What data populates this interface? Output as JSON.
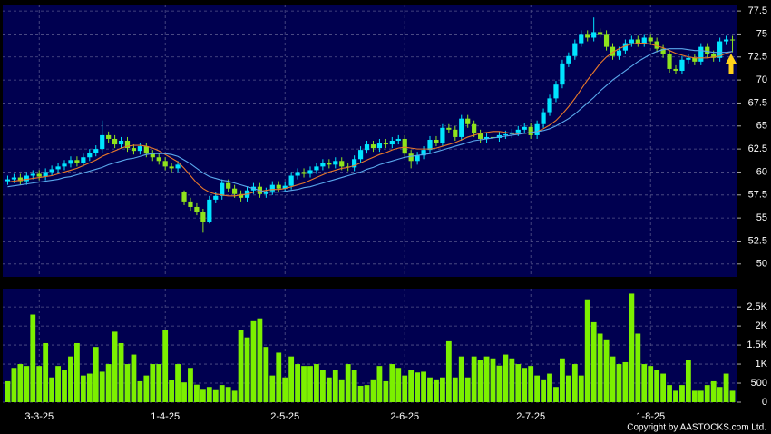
{
  "chart_data": [
    {
      "type": "candlestick",
      "up_color": "#00e5ff",
      "down_color": "#8fe31c",
      "grid": true,
      "ylim": [
        48.6,
        78.2
      ],
      "yticks": [
        50,
        52.5,
        55,
        57.5,
        60,
        62.5,
        65,
        67.5,
        70,
        72.5,
        75,
        77.5
      ],
      "ohlc": [
        [
          59.0,
          59.6,
          58.6,
          59.2
        ],
        [
          59.2,
          59.8,
          58.8,
          59.4
        ],
        [
          59.4,
          59.8,
          58.6,
          59.0
        ],
        [
          59.0,
          60.0,
          58.6,
          59.6
        ],
        [
          59.6,
          60.2,
          59.2,
          59.8
        ],
        [
          59.8,
          60.2,
          59.1,
          59.5
        ],
        [
          59.5,
          60.4,
          59.1,
          60.0
        ],
        [
          60.0,
          60.7,
          59.6,
          60.3
        ],
        [
          60.3,
          61.0,
          59.9,
          60.6
        ],
        [
          60.6,
          61.3,
          60.2,
          60.9
        ],
        [
          60.9,
          61.7,
          60.5,
          61.3
        ],
        [
          61.3,
          61.7,
          60.6,
          61.0
        ],
        [
          61.0,
          62.0,
          60.6,
          61.6
        ],
        [
          61.6,
          62.5,
          61.2,
          62.1
        ],
        [
          62.1,
          62.9,
          61.7,
          62.5
        ],
        [
          62.5,
          65.6,
          62.1,
          64.0
        ],
        [
          64.0,
          64.4,
          63.2,
          63.6
        ],
        [
          63.6,
          64.0,
          62.6,
          63.0
        ],
        [
          63.0,
          63.8,
          62.6,
          63.4
        ],
        [
          63.4,
          63.8,
          62.2,
          62.6
        ],
        [
          62.6,
          63.0,
          61.9,
          62.3
        ],
        [
          62.3,
          63.2,
          61.9,
          62.8
        ],
        [
          62.8,
          63.2,
          61.6,
          62.0
        ],
        [
          62.0,
          62.4,
          61.2,
          61.6
        ],
        [
          61.6,
          62.0,
          60.8,
          61.2
        ],
        [
          61.2,
          61.6,
          60.2,
          60.6
        ],
        [
          60.6,
          61.0,
          60.0,
          60.4
        ],
        [
          60.4,
          61.2,
          60.0,
          60.8
        ],
        [
          57.8,
          58.0,
          56.4,
          56.8
        ],
        [
          56.8,
          57.2,
          55.8,
          56.2
        ],
        [
          56.2,
          56.6,
          55.3,
          55.7
        ],
        [
          55.7,
          56.0,
          53.4,
          54.6
        ],
        [
          54.6,
          57.4,
          54.4,
          57.0
        ],
        [
          57.0,
          57.8,
          56.6,
          57.4
        ],
        [
          57.4,
          59.2,
          57.0,
          58.8
        ],
        [
          58.8,
          59.2,
          57.8,
          58.2
        ],
        [
          58.2,
          58.6,
          57.2,
          57.6
        ],
        [
          57.6,
          58.0,
          56.8,
          57.2
        ],
        [
          57.2,
          58.4,
          56.8,
          58.0
        ],
        [
          58.0,
          58.8,
          57.6,
          58.4
        ],
        [
          58.4,
          58.8,
          57.2,
          57.6
        ],
        [
          57.6,
          58.3,
          57.2,
          57.9
        ],
        [
          57.9,
          59.0,
          57.5,
          58.6
        ],
        [
          58.6,
          59.0,
          57.8,
          58.2
        ],
        [
          58.2,
          58.9,
          57.8,
          58.5
        ],
        [
          58.5,
          60.0,
          58.1,
          59.6
        ],
        [
          59.6,
          60.4,
          59.2,
          60.0
        ],
        [
          60.0,
          60.4,
          59.4,
          59.8
        ],
        [
          59.8,
          60.6,
          59.4,
          60.2
        ],
        [
          60.2,
          61.0,
          59.8,
          60.6
        ],
        [
          60.6,
          61.4,
          60.2,
          61.0
        ],
        [
          61.0,
          61.4,
          60.4,
          60.8
        ],
        [
          60.8,
          61.6,
          60.4,
          61.2
        ],
        [
          61.2,
          61.6,
          60.2,
          60.6
        ],
        [
          60.6,
          61.0,
          60.1,
          60.5
        ],
        [
          60.5,
          61.8,
          60.1,
          61.4
        ],
        [
          61.4,
          62.8,
          61.0,
          62.4
        ],
        [
          62.4,
          63.4,
          62.0,
          63.0
        ],
        [
          63.0,
          63.4,
          62.2,
          62.6
        ],
        [
          62.6,
          63.6,
          62.2,
          63.2
        ],
        [
          63.2,
          63.6,
          62.6,
          63.0
        ],
        [
          63.0,
          63.8,
          62.6,
          63.4
        ],
        [
          63.4,
          64.0,
          63.0,
          63.6
        ],
        [
          63.6,
          64.0,
          61.6,
          62.0
        ],
        [
          62.0,
          62.4,
          60.4,
          61.2
        ],
        [
          61.2,
          62.2,
          60.8,
          61.8
        ],
        [
          61.8,
          62.8,
          61.4,
          62.4
        ],
        [
          62.4,
          63.9,
          62.0,
          63.5
        ],
        [
          63.5,
          63.9,
          62.8,
          63.2
        ],
        [
          63.2,
          65.2,
          62.8,
          64.8
        ],
        [
          64.8,
          65.2,
          64.2,
          64.6
        ],
        [
          64.6,
          65.0,
          63.4,
          63.8
        ],
        [
          63.8,
          66.2,
          63.4,
          65.8
        ],
        [
          65.8,
          66.2,
          64.8,
          65.2
        ],
        [
          65.2,
          65.6,
          63.8,
          64.2
        ],
        [
          64.2,
          64.6,
          63.2,
          63.6
        ],
        [
          63.6,
          64.2,
          63.2,
          63.8
        ],
        [
          63.8,
          64.2,
          63.3,
          63.7
        ],
        [
          63.7,
          64.4,
          63.3,
          64.0
        ],
        [
          64.0,
          64.5,
          63.6,
          64.1
        ],
        [
          64.1,
          64.7,
          63.7,
          64.3
        ],
        [
          64.3,
          65.0,
          63.9,
          64.6
        ],
        [
          64.6,
          65.3,
          64.2,
          64.9
        ],
        [
          64.9,
          65.3,
          63.6,
          64.0
        ],
        [
          64.0,
          65.6,
          63.6,
          65.2
        ],
        [
          65.2,
          66.9,
          64.8,
          66.5
        ],
        [
          66.5,
          68.4,
          66.1,
          68.0
        ],
        [
          68.0,
          69.9,
          67.6,
          69.5
        ],
        [
          69.5,
          72.2,
          69.1,
          71.8
        ],
        [
          71.8,
          73.0,
          71.4,
          72.6
        ],
        [
          72.6,
          74.4,
          72.2,
          74.0
        ],
        [
          74.0,
          75.4,
          73.6,
          75.0
        ],
        [
          75.0,
          75.4,
          74.2,
          74.6
        ],
        [
          74.6,
          76.8,
          74.2,
          75.2
        ],
        [
          75.2,
          75.6,
          74.6,
          75.0
        ],
        [
          75.0,
          75.4,
          73.2,
          73.6
        ],
        [
          73.6,
          74.0,
          72.2,
          72.6
        ],
        [
          72.6,
          73.6,
          72.2,
          73.2
        ],
        [
          73.2,
          74.4,
          72.8,
          74.0
        ],
        [
          74.0,
          74.8,
          73.6,
          74.4
        ],
        [
          74.4,
          74.8,
          73.6,
          74.0
        ],
        [
          74.0,
          75.0,
          73.6,
          74.6
        ],
        [
          74.6,
          75.0,
          73.8,
          74.2
        ],
        [
          74.2,
          74.6,
          73.0,
          73.4
        ],
        [
          73.4,
          73.8,
          72.4,
          72.8
        ],
        [
          72.8,
          73.2,
          70.8,
          71.2
        ],
        [
          71.2,
          71.6,
          70.6,
          71.0
        ],
        [
          71.0,
          72.6,
          70.6,
          72.2
        ],
        [
          72.2,
          72.8,
          71.8,
          72.4
        ],
        [
          72.4,
          72.8,
          71.6,
          72.0
        ],
        [
          72.0,
          74.0,
          71.6,
          73.6
        ],
        [
          73.6,
          74.0,
          72.4,
          72.8
        ],
        [
          72.8,
          73.2,
          72.0,
          72.4
        ],
        [
          72.4,
          74.6,
          72.0,
          74.2
        ],
        [
          74.2,
          74.8,
          73.8,
          74.4
        ],
        [
          74.4,
          74.8,
          73.0,
          74.3
        ]
      ],
      "series": [
        {
          "color": "#e8782a",
          "values": [
            58.9,
            59.0,
            59.1,
            59.2,
            59.3,
            59.4,
            59.5,
            59.6,
            59.8,
            60.0,
            60.2,
            60.4,
            60.7,
            61.0,
            61.3,
            61.7,
            62.0,
            62.3,
            62.6,
            62.8,
            62.9,
            62.9,
            62.8,
            62.6,
            62.3,
            61.9,
            61.5,
            61.1,
            60.4,
            59.6,
            58.8,
            58.2,
            57.8,
            57.6,
            57.5,
            57.4,
            57.4,
            57.5,
            57.6,
            57.8,
            57.9,
            58.0,
            58.1,
            58.1,
            58.2,
            58.4,
            58.6,
            58.8,
            59.1,
            59.4,
            59.7,
            60.0,
            60.2,
            60.4,
            60.5,
            60.7,
            61.0,
            61.3,
            61.6,
            61.9,
            62.1,
            62.4,
            62.6,
            62.7,
            62.6,
            62.5,
            62.5,
            62.5,
            62.6,
            62.8,
            63.0,
            63.2,
            63.5,
            63.8,
            64.0,
            64.2,
            64.3,
            64.4,
            64.4,
            64.3,
            64.2,
            64.2,
            64.2,
            64.3,
            64.4,
            64.7,
            65.1,
            65.6,
            66.3,
            67.1,
            68.0,
            69.0,
            70.0,
            70.9,
            71.8,
            72.5,
            73.0,
            73.4,
            73.7,
            73.9,
            74.0,
            74.0,
            73.9,
            73.7,
            73.5,
            73.2,
            72.9,
            72.7,
            72.5,
            72.4,
            72.4,
            72.4,
            72.5,
            72.6,
            72.9,
            73.1
          ]
        },
        {
          "color": "#5aa8ec",
          "values": [
            58.4,
            58.5,
            58.6,
            58.7,
            58.8,
            58.9,
            59.0,
            59.1,
            59.2,
            59.4,
            59.5,
            59.7,
            59.9,
            60.1,
            60.3,
            60.5,
            60.8,
            61.0,
            61.2,
            61.4,
            61.5,
            61.7,
            61.9,
            62.0,
            62.0,
            62.0,
            61.9,
            61.7,
            61.3,
            60.9,
            60.4,
            59.9,
            59.5,
            59.3,
            59.1,
            59.0,
            58.8,
            58.6,
            58.4,
            58.2,
            58.0,
            57.8,
            57.8,
            57.8,
            57.9,
            58.0,
            58.1,
            58.3,
            58.4,
            58.6,
            58.8,
            59.0,
            59.2,
            59.4,
            59.6,
            59.8,
            60.0,
            60.3,
            60.5,
            60.8,
            61.0,
            61.2,
            61.4,
            61.6,
            61.7,
            61.8,
            61.9,
            62.0,
            62.2,
            62.4,
            62.6,
            62.8,
            63.0,
            63.2,
            63.4,
            63.5,
            63.6,
            63.7,
            63.8,
            63.9,
            64.0,
            64.1,
            64.2,
            64.3,
            64.4,
            64.5,
            64.7,
            65.0,
            65.4,
            65.8,
            66.3,
            66.9,
            67.5,
            68.1,
            68.8,
            69.4,
            70.0,
            70.5,
            71.0,
            71.5,
            72.0,
            72.4,
            72.8,
            73.1,
            73.3,
            73.4,
            73.4,
            73.4,
            73.3,
            73.2,
            73.2,
            73.1,
            73.0,
            73.0,
            73.0,
            73.1
          ]
        }
      ]
    },
    {
      "type": "bar",
      "color": "#7cf000",
      "grid": true,
      "ylim": [
        0,
        2980
      ],
      "yticks": [
        0,
        500,
        {
          "value": 1000,
          "label": "1K"
        },
        {
          "value": 1500,
          "label": "1.5K"
        },
        {
          "value": 2000,
          "label": "2K"
        },
        {
          "value": 2500,
          "label": "2.5K"
        }
      ],
      "categories": [
        null,
        null,
        null,
        null,
        null,
        "3-3-25",
        null,
        null,
        null,
        null,
        null,
        null,
        null,
        null,
        null,
        null,
        null,
        null,
        null,
        null,
        null,
        null,
        null,
        null,
        null,
        "1-4-25",
        null,
        null,
        null,
        null,
        null,
        null,
        null,
        null,
        null,
        null,
        null,
        null,
        null,
        null,
        null,
        null,
        null,
        null,
        "2-5-25",
        null,
        null,
        null,
        null,
        null,
        null,
        null,
        null,
        null,
        null,
        null,
        null,
        null,
        null,
        null,
        null,
        null,
        null,
        "2-6-25",
        null,
        null,
        null,
        null,
        null,
        null,
        null,
        null,
        null,
        null,
        null,
        null,
        null,
        null,
        null,
        null,
        null,
        null,
        null,
        "2-7-25",
        null,
        null,
        null,
        null,
        null,
        null,
        null,
        null,
        null,
        null,
        null,
        null,
        null,
        null,
        null,
        null,
        null,
        null,
        "1-8-25",
        null,
        null,
        null,
        null,
        null,
        null,
        null,
        null,
        null,
        null,
        null,
        null,
        null
      ],
      "values": [
        550,
        900,
        1000,
        950,
        2300,
        950,
        1550,
        650,
        950,
        850,
        1200,
        1550,
        700,
        750,
        1450,
        800,
        1000,
        1850,
        1550,
        1000,
        1250,
        550,
        700,
        1000,
        1000,
        1900,
        580,
        1000,
        520,
        900,
        460,
        350,
        400,
        340,
        450,
        400,
        300,
        1900,
        1700,
        2150,
        2200,
        1450,
        700,
        1300,
        650,
        1200,
        1000,
        950,
        950,
        1000,
        850,
        650,
        850,
        600,
        1000,
        850,
        430,
        450,
        600,
        950,
        550,
        1000,
        900,
        700,
        850,
        780,
        800,
        650,
        600,
        650,
        1600,
        650,
        1200,
        650,
        1200,
        1100,
        1200,
        1150,
        960,
        1250,
        1150,
        1000,
        900,
        950,
        700,
        600,
        750,
        400,
        1150,
        700,
        1000,
        700,
        2700,
        2100,
        1800,
        1650,
        1200,
        1000,
        1050,
        2850,
        1800,
        1000,
        950,
        850,
        750,
        450,
        300,
        450,
        1100,
        300,
        300,
        450,
        550,
        400,
        750,
        300
      ]
    }
  ],
  "copyright": "Copyright by AASTOCKS.com Ltd."
}
